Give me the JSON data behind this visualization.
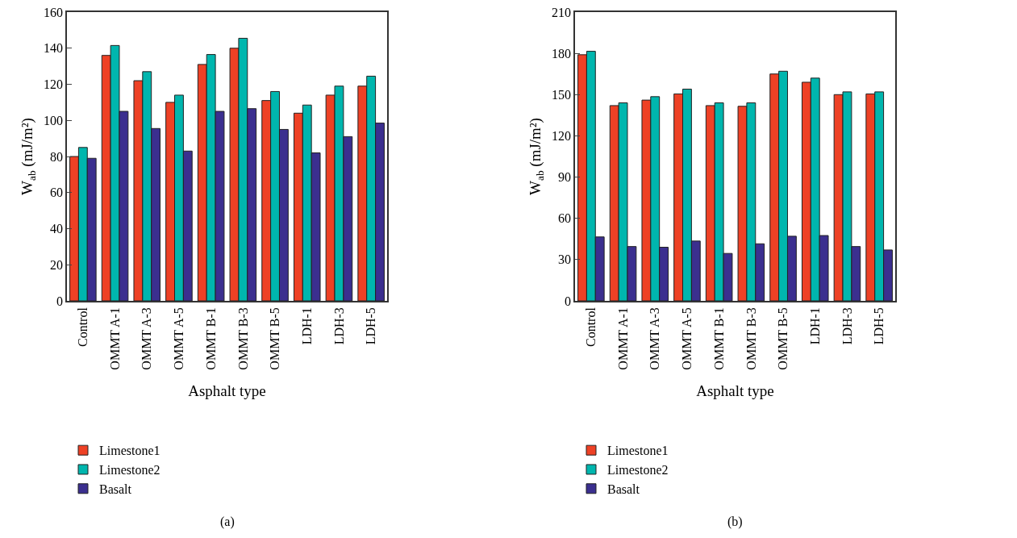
{
  "chart_data": [
    {
      "type": "bar",
      "xlabel": "Asphalt type",
      "ylabel": "W$_{ab}$ (mJ/m²)",
      "categories": [
        "Control",
        "OMMT A-1",
        "OMMT A-3",
        "OMMT A-5",
        "OMMT B-1",
        "OMMT B-3",
        "OMMT B-5",
        "LDH-1",
        "LDH-3",
        "LDH-5"
      ],
      "series": [
        {
          "name": "Limestone1",
          "color": "#ee4125",
          "values": [
            80,
            136,
            122,
            110,
            131,
            140,
            111,
            104,
            114,
            119
          ]
        },
        {
          "name": "Limestone2",
          "color": "#00b6ae",
          "values": [
            85,
            141.5,
            127,
            114,
            136.5,
            145.5,
            116,
            108.5,
            119,
            124.5
          ]
        },
        {
          "name": "Basalt",
          "color": "#3b2f8f",
          "values": [
            79,
            105,
            95.5,
            83,
            105,
            106.5,
            95,
            82,
            91,
            98.5
          ]
        }
      ],
      "ylim": [
        0,
        160
      ],
      "yticks": [
        0,
        20,
        40,
        60,
        80,
        100,
        120,
        140,
        160
      ],
      "grid": false,
      "legend": "bottom left",
      "annotations": [
        "(a)"
      ]
    },
    {
      "type": "bar",
      "xlabel": "Asphalt type",
      "ylabel": "W$_{ab}$ (mJ/m²)",
      "categories": [
        "Control",
        "OMMT A-1",
        "OMMT A-3",
        "OMMT A-5",
        "OMMT B-1",
        "OMMT B-3",
        "OMMT B-5",
        "LDH-1",
        "LDH-3",
        "LDH-5"
      ],
      "series": [
        {
          "name": "Limestone1",
          "color": "#ee4125",
          "values": [
            179,
            142,
            146,
            150.5,
            142,
            141.5,
            165,
            159,
            150,
            150.5
          ]
        },
        {
          "name": "Limestone2",
          "color": "#00b6ae",
          "values": [
            181.5,
            144,
            148.5,
            154,
            144,
            144,
            167,
            162,
            152,
            152
          ]
        },
        {
          "name": "Basalt",
          "color": "#3b2f8f",
          "values": [
            46.5,
            39.5,
            39,
            43.5,
            34.5,
            41.5,
            47,
            47.5,
            39.5,
            37
          ]
        }
      ],
      "ylim": [
        0,
        210
      ],
      "yticks": [
        0,
        30,
        60,
        90,
        120,
        150,
        180,
        210
      ],
      "grid": false,
      "legend": "bottom left",
      "annotations": [
        "(b)"
      ]
    }
  ]
}
